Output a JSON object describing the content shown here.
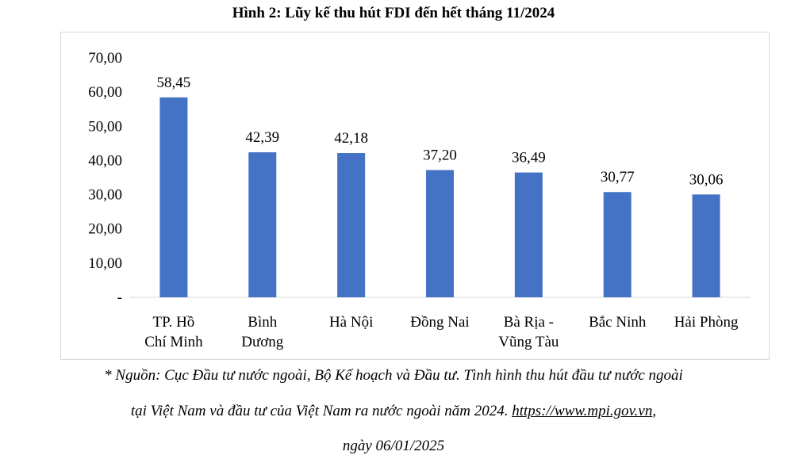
{
  "title": "Hình 2: Lũy kế thu hút FDI đến hết tháng 11/2024",
  "chart_data": {
    "type": "bar",
    "categories": [
      [
        "TP. Hồ",
        "Chí Minh"
      ],
      [
        "Bình",
        "Dương"
      ],
      [
        "Hà Nội"
      ],
      [
        "Đồng Nai"
      ],
      [
        "Bà Rịa -",
        "Vũng Tàu"
      ],
      [
        "Bắc Ninh"
      ],
      [
        "Hải Phòng"
      ]
    ],
    "values": [
      58.45,
      42.39,
      42.18,
      37.2,
      36.49,
      30.77,
      30.06
    ],
    "value_labels": [
      "58,45",
      "42,39",
      "42,18",
      "37,20",
      "36,49",
      "30,77",
      "30,06"
    ],
    "yticks": [
      "-",
      "10,00",
      "20,00",
      "30,00",
      "40,00",
      "50,00",
      "60,00",
      "70,00"
    ],
    "ylim": [
      0,
      70
    ],
    "bar_color": "#4472C4",
    "grid": false,
    "legend": false
  },
  "source": {
    "line1": "* Nguồn: Cục Đầu tư nước ngoài, Bộ Kế hoạch và Đầu tư. Tình hình thu hút đầu tư nước ngoài",
    "line2_text": "tại Việt Nam và đầu tư của Việt Nam ra nước ngoài năm 2024. ",
    "line2_link": "https://www.mpi.gov.vn",
    "line2_end": ",",
    "line3": "ngày 06/01/2025"
  }
}
